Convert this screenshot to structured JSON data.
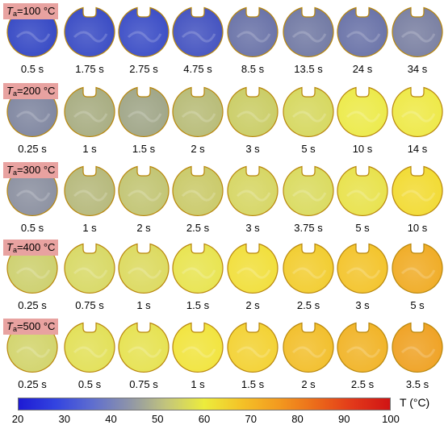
{
  "rows": [
    {
      "label": "=100 °C",
      "times": [
        "0.5 s",
        "1.75 s",
        "2.75 s",
        "4.75 s",
        "8.5 s",
        "13.5 s",
        "24 s",
        "34 s"
      ],
      "colors": [
        "#3548c4",
        "#3a4cc4",
        "#3c4ec6",
        "#4453c0",
        "#6a73a8",
        "#727aa4",
        "#6a73a8",
        "#7a80a2"
      ]
    },
    {
      "label": "=200 °C",
      "times": [
        "0.25 s",
        "1 s",
        "1.5 s",
        "2 s",
        "3 s",
        "5 s",
        "10 s",
        "14 s"
      ],
      "colors": [
        "#7f86a0",
        "#a8ad82",
        "#a0a688",
        "#b8bc78",
        "#cacd66",
        "#d6d860",
        "#ecea4a",
        "#eee948"
      ]
    },
    {
      "label": "=300 °C",
      "times": [
        "0.5 s",
        "1 s",
        "2 s",
        "2.5 s",
        "3 s",
        "3.75 s",
        "5 s",
        "10 s"
      ],
      "colors": [
        "#8b90a0",
        "#b6b97c",
        "#c2c574",
        "#caca6a",
        "#d6d664",
        "#dadb60",
        "#e8e24c",
        "#f2db34"
      ]
    },
    {
      "label": "=400 °C",
      "times": [
        "0.25 s",
        "0.75 s",
        "1 s",
        "1.5 s",
        "2 s",
        "2.5 s",
        "3 s",
        "5 s"
      ],
      "colors": [
        "#cdd06e",
        "#d8d966",
        "#dcda60",
        "#e8e450",
        "#f1df3c",
        "#f2cd30",
        "#f3c42c",
        "#f0ac26"
      ]
    },
    {
      "label": "=500 °C",
      "times": [
        "0.25 s",
        "0.5 s",
        "0.75 s",
        "1 s",
        "1.5 s",
        "2 s",
        "2.5 s",
        "3.5 s"
      ],
      "colors": [
        "#d2d46c",
        "#e2e058",
        "#e6e252",
        "#f1e43e",
        "#f3d234",
        "#f2bf2c",
        "#f1b428",
        "#efa224"
      ]
    }
  ],
  "colorbar": {
    "ticks": [
      "20",
      "30",
      "40",
      "50",
      "60",
      "70",
      "80",
      "90",
      "100"
    ],
    "unit_label": "T (°C)"
  }
}
